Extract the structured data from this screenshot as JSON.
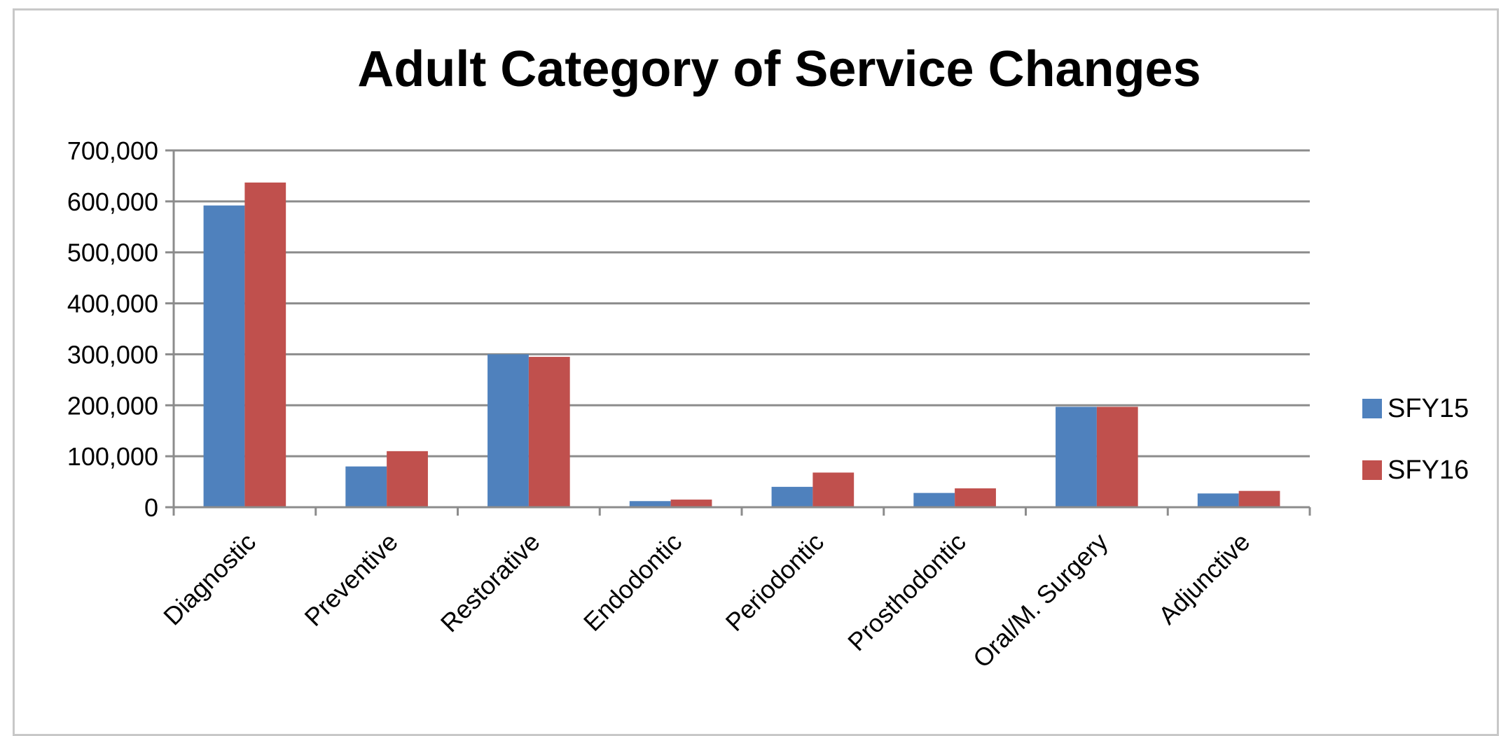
{
  "chart_data": {
    "type": "bar",
    "title": "Adult Category of Service Changes",
    "xlabel": "",
    "ylabel": "",
    "ylim": [
      0,
      700000
    ],
    "yticks": [
      0,
      100000,
      200000,
      300000,
      400000,
      500000,
      600000,
      700000
    ],
    "ytick_labels": [
      "0",
      "100,000",
      "200,000",
      "300,000",
      "400,000",
      "500,000",
      "600,000",
      "700,000"
    ],
    "categories": [
      "Diagnostic",
      "Preventive",
      "Restorative",
      "Endodontic",
      "Periodontic",
      "Prosthodontic",
      "Oral/M. Surgery",
      "Adjunctive"
    ],
    "series": [
      {
        "name": "SFY15",
        "color": "#4f81bd",
        "values": [
          592000,
          80000,
          300000,
          12000,
          40000,
          28000,
          197000,
          27000
        ]
      },
      {
        "name": "SFY16",
        "color": "#c0504d",
        "values": [
          637000,
          110000,
          295000,
          15000,
          68000,
          37000,
          197000,
          32000
        ]
      }
    ],
    "grid": true,
    "legend_position": "right"
  }
}
